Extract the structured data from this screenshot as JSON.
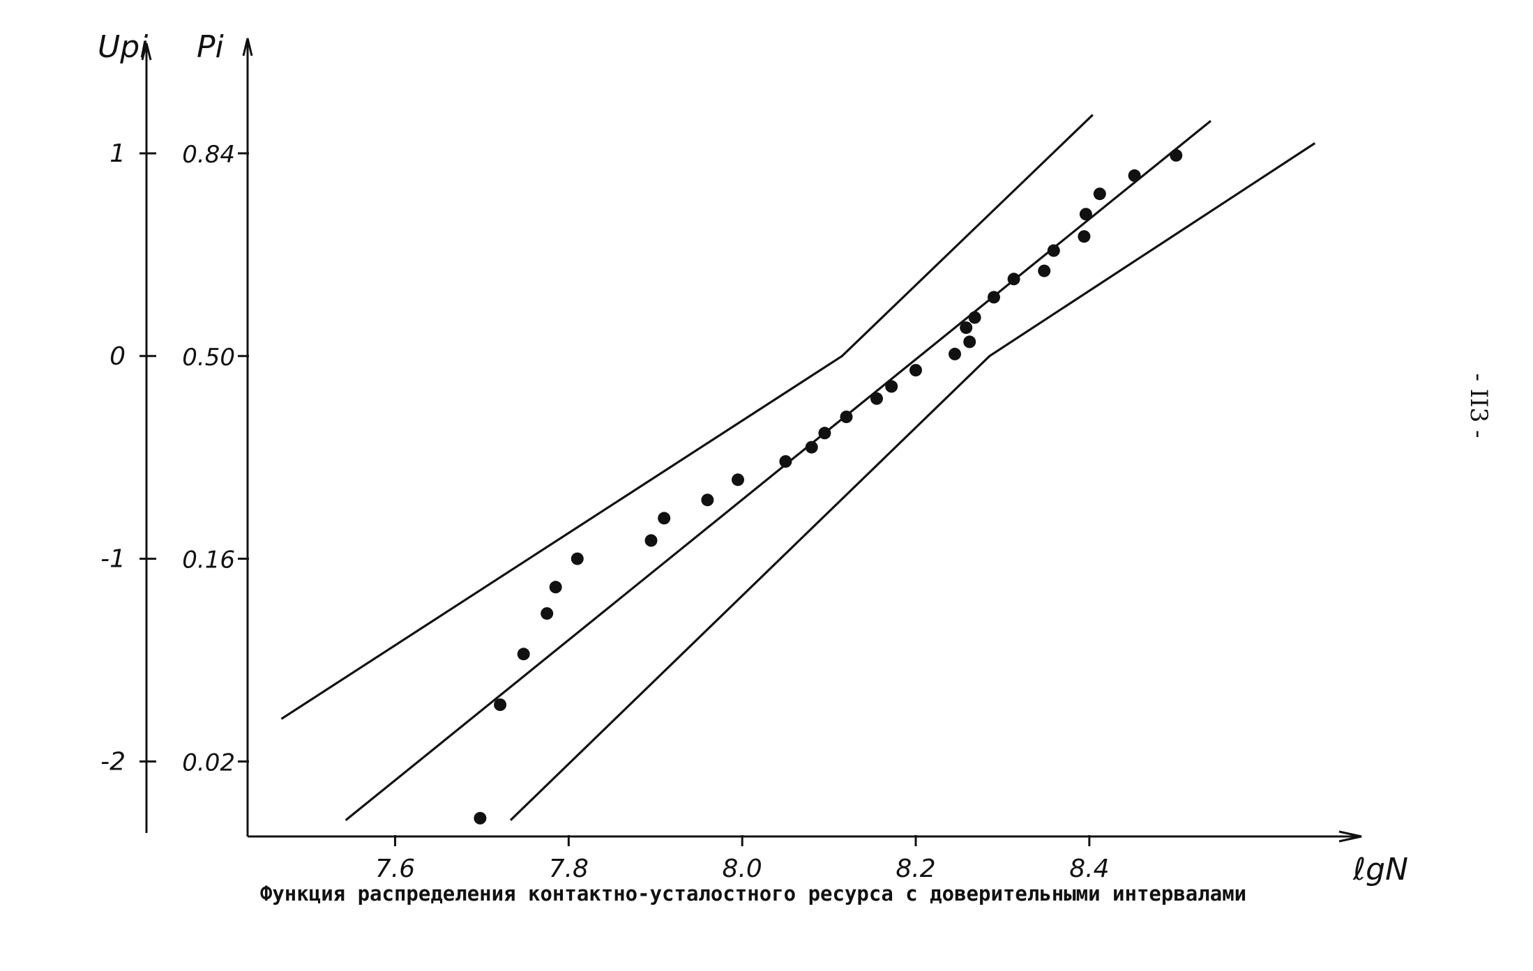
{
  "page_number": "- II3 -",
  "caption": "Функция распределения контактно-усталостного ресурса с доверительными интервалами",
  "colors": {
    "ink": "#111111",
    "background": "#ffffff"
  },
  "chart_data": {
    "type": "scatter",
    "xlabel": "ℓgN",
    "ylabel_left": "Uрi",
    "ylabel_right": "Pi",
    "xlim": [
      7.43,
      8.72
    ],
    "ylim": [
      -2.37,
      1.55
    ],
    "x_ticks": [
      {
        "value": 7.6,
        "label": "7.6"
      },
      {
        "value": 7.8,
        "label": "7.8"
      },
      {
        "value": 8.0,
        "label": "8.0"
      },
      {
        "value": 8.2,
        "label": "8.2"
      },
      {
        "value": 8.4,
        "label": "8.4"
      }
    ],
    "y_ticks": [
      {
        "value": 1,
        "u_label": "1",
        "p_label": "0.84"
      },
      {
        "value": 0,
        "u_label": "0",
        "p_label": "0.50"
      },
      {
        "value": -1,
        "u_label": "-1",
        "p_label": "0.16"
      },
      {
        "value": -2,
        "u_label": "-2",
        "p_label": "0.02"
      }
    ],
    "grid": false,
    "series": [
      {
        "kind": "points",
        "points": [
          [
            7.698,
            -2.28
          ],
          [
            7.721,
            -1.72
          ],
          [
            7.748,
            -1.47
          ],
          [
            7.775,
            -1.27
          ],
          [
            7.785,
            -1.14
          ],
          [
            7.81,
            -1.0
          ],
          [
            7.895,
            -0.91
          ],
          [
            7.91,
            -0.8
          ],
          [
            7.96,
            -0.71
          ],
          [
            7.995,
            -0.61
          ],
          [
            8.05,
            -0.52
          ],
          [
            8.08,
            -0.45
          ],
          [
            8.095,
            -0.38
          ],
          [
            8.12,
            -0.3
          ],
          [
            8.155,
            -0.21
          ],
          [
            8.172,
            -0.15
          ],
          [
            8.2,
            -0.07
          ],
          [
            8.245,
            0.01
          ],
          [
            8.258,
            0.14
          ],
          [
            8.262,
            0.07
          ],
          [
            8.268,
            0.19
          ],
          [
            8.29,
            0.29
          ],
          [
            8.313,
            0.38
          ],
          [
            8.348,
            0.42
          ],
          [
            8.359,
            0.52
          ],
          [
            8.394,
            0.59
          ],
          [
            8.396,
            0.7
          ],
          [
            8.412,
            0.8
          ],
          [
            8.452,
            0.89
          ],
          [
            8.5,
            0.99
          ]
        ]
      },
      {
        "kind": "line",
        "role": "fitted",
        "points": [
          [
            7.543,
            -2.29
          ],
          [
            8.54,
            1.16
          ]
        ]
      },
      {
        "kind": "line",
        "role": "upper-bound",
        "points": [
          [
            7.469,
            -1.79
          ],
          [
            8.115,
            0.0
          ],
          [
            8.404,
            1.19
          ]
        ]
      },
      {
        "kind": "line",
        "role": "lower-bound",
        "points": [
          [
            7.733,
            -2.29
          ],
          [
            8.285,
            0.0
          ],
          [
            8.66,
            1.05
          ]
        ]
      }
    ]
  }
}
